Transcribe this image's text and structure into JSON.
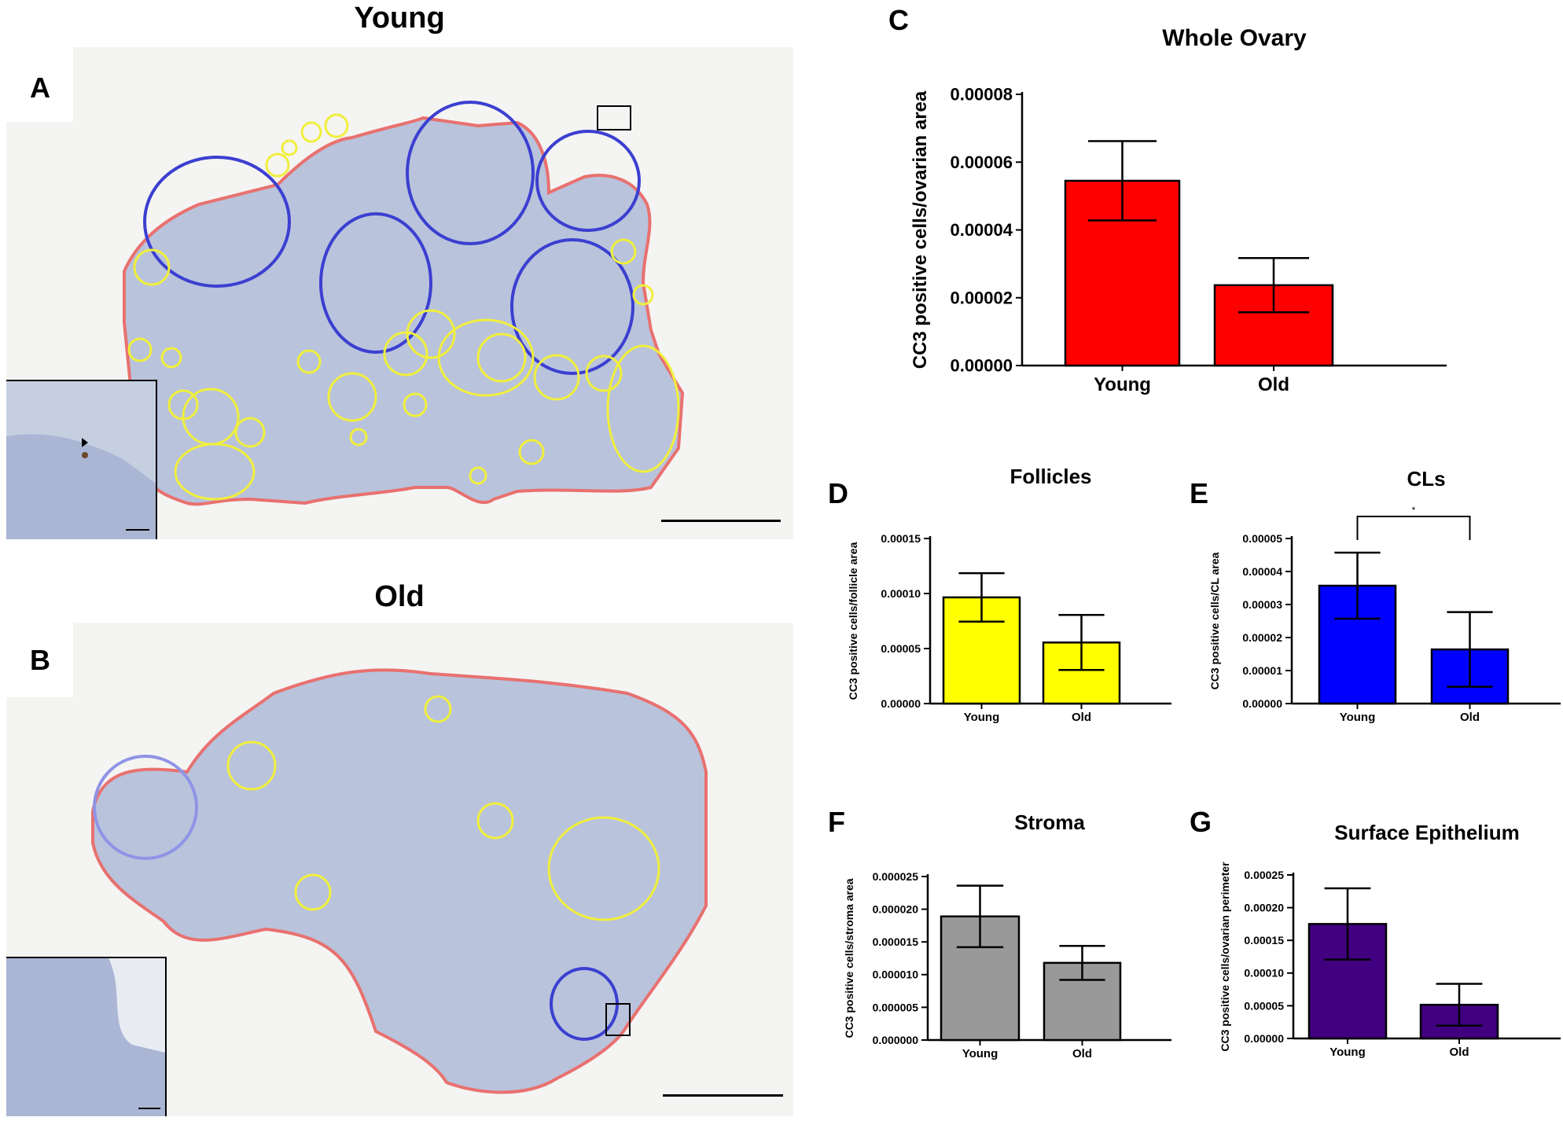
{
  "panels": {
    "A": {
      "label": "A",
      "title": "Young"
    },
    "B": {
      "label": "B",
      "title": "Old"
    }
  },
  "colors": {
    "ovary_outline": "#e8716f",
    "follicle_outline": "#f0ef3c",
    "cl_outline": "#3b3fd0",
    "tissue": "#b9c3dc",
    "background": "#f4f4f3"
  },
  "chart_data": [
    {
      "id": "C",
      "panel_label": "C",
      "type": "bar",
      "title": "Whole Ovary",
      "ylabel": "CC3 positive cells/ovarian area",
      "categories": [
        "Young",
        "Old"
      ],
      "values": [
        5.45e-05,
        2.37e-05
      ],
      "errors": [
        1.17e-05,
        8e-06
      ],
      "ylim": [
        0,
        8e-05
      ],
      "yticks": [
        "0.00000",
        "0.00002",
        "0.00004",
        "0.00006",
        "0.00008"
      ],
      "ytick_values": [
        0,
        2e-05,
        4e-05,
        6e-05,
        8e-05
      ],
      "colors": [
        "#ff0000",
        "#ff0000"
      ],
      "significance": ""
    },
    {
      "id": "D",
      "panel_label": "D",
      "type": "bar",
      "title": "Follicles",
      "ylabel": "CC3 positive cells/follicle area",
      "categories": [
        "Young",
        "Old"
      ],
      "values": [
        9.65e-05,
        5.55e-05
      ],
      "errors": [
        2.2e-05,
        2.5e-05
      ],
      "ylim": [
        0,
        0.00015
      ],
      "yticks": [
        "0.00000",
        "0.00005",
        "0.00010",
        "0.00015"
      ],
      "ytick_values": [
        0,
        5e-05,
        0.0001,
        0.00015
      ],
      "colors": [
        "#ffff00",
        "#ffff00"
      ],
      "significance": ""
    },
    {
      "id": "E",
      "panel_label": "E",
      "type": "bar",
      "title": "CLs",
      "ylabel": "CC3 positive cells/CL area",
      "categories": [
        "Young",
        "Old"
      ],
      "values": [
        3.57e-05,
        1.64e-05
      ],
      "errors": [
        1e-05,
        1.13e-05
      ],
      "ylim": [
        0,
        5e-05
      ],
      "yticks": [
        "0.00000",
        "0.00001",
        "0.00002",
        "0.00003",
        "0.00004",
        "0.00005"
      ],
      "ytick_values": [
        0,
        1e-05,
        2e-05,
        3e-05,
        4e-05,
        5e-05
      ],
      "colors": [
        "#0000ff",
        "#0000ff"
      ],
      "significance": "*"
    },
    {
      "id": "F",
      "panel_label": "F",
      "type": "bar",
      "title": "Stroma",
      "ylabel": "CC3 positive cells/stroma area",
      "categories": [
        "Young",
        "Old"
      ],
      "values": [
        1.89e-05,
        1.18e-05
      ],
      "errors": [
        4.7e-06,
        2.6e-06
      ],
      "ylim": [
        0,
        2.5e-05
      ],
      "yticks": [
        "0.000000",
        "0.000005",
        "0.000010",
        "0.000015",
        "0.000020",
        "0.000025"
      ],
      "ytick_values": [
        0,
        5e-06,
        1e-05,
        1.5e-05,
        2e-05,
        2.5e-05
      ],
      "colors": [
        "#999999",
        "#999999"
      ],
      "significance": ""
    },
    {
      "id": "G",
      "panel_label": "G",
      "type": "bar",
      "title": "Surface Epithelium",
      "ylabel": "CC3 positive cells/ovarian perimeter",
      "categories": [
        "Young",
        "Old"
      ],
      "values": [
        0.000175,
        5.15e-05
      ],
      "errors": [
        5.45e-05,
        3.2e-05
      ],
      "ylim": [
        0,
        0.00025
      ],
      "yticks": [
        "0.00000",
        "0.00005",
        "0.00010",
        "0.00015",
        "0.00020",
        "0.00025"
      ],
      "ytick_values": [
        0,
        5e-05,
        0.0001,
        0.00015,
        0.0002,
        0.00025
      ],
      "colors": [
        "#400080",
        "#400080"
      ],
      "significance": ""
    }
  ]
}
